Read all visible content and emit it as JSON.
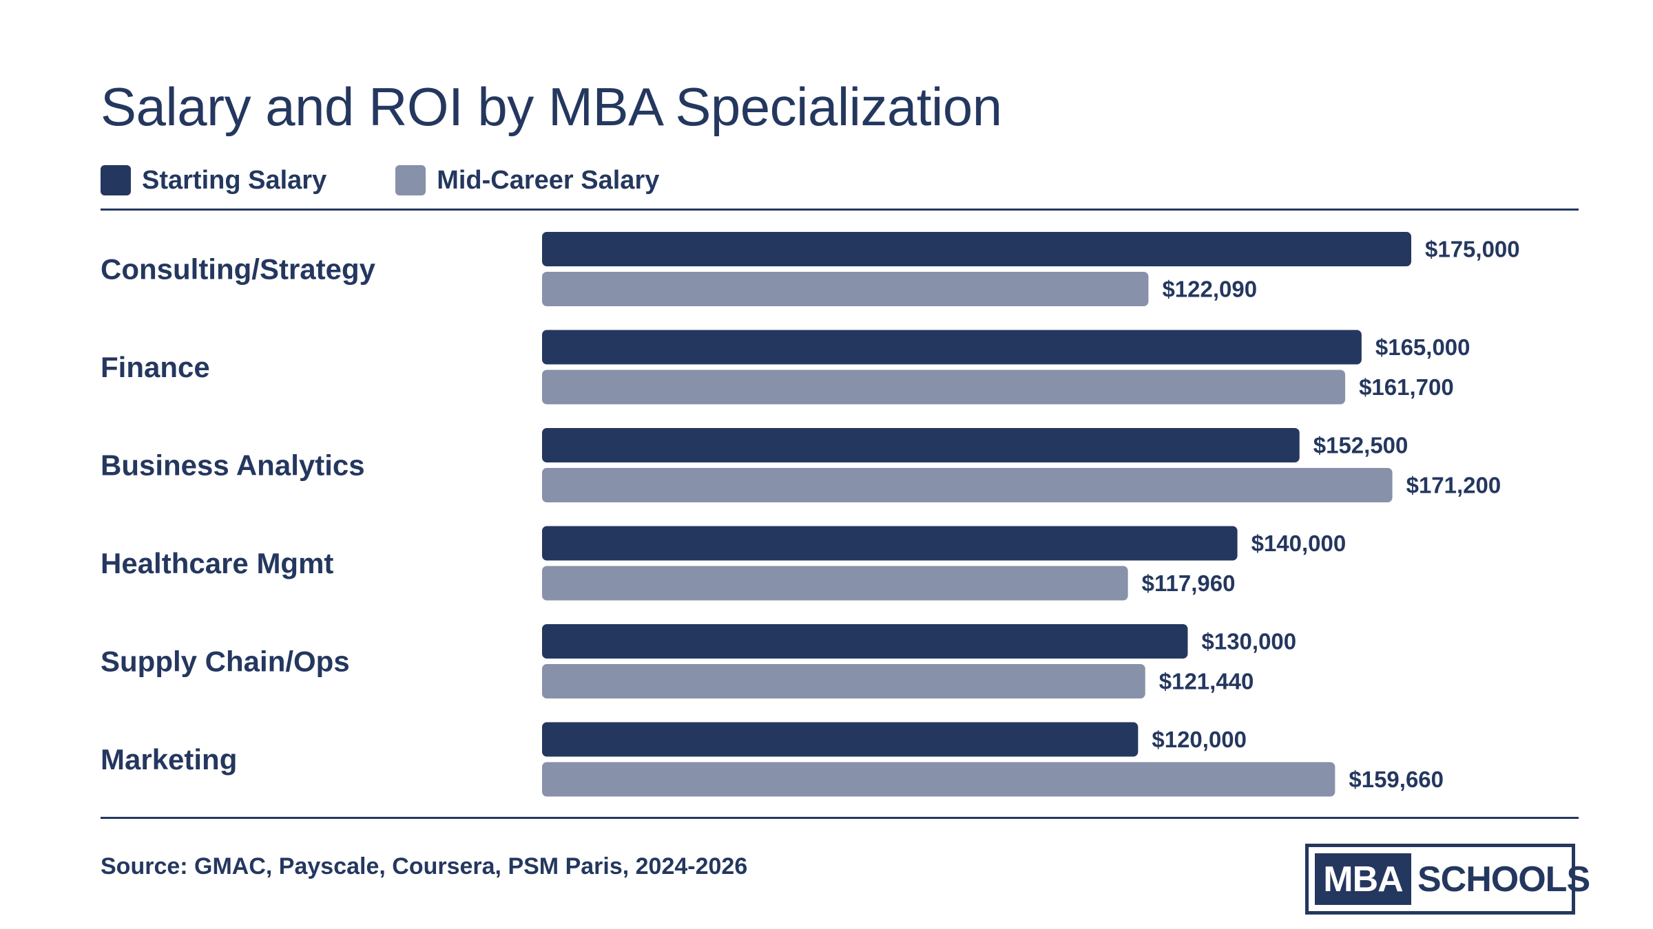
{
  "chart_data": {
    "type": "bar",
    "orientation": "horizontal",
    "title": "Salary and ROI by MBA Specialization",
    "categories": [
      "Consulting/Strategy",
      "Finance",
      "Business Analytics",
      "Healthcare Mgmt",
      "Supply Chain/Ops",
      "Marketing"
    ],
    "series": [
      {
        "name": "Starting Salary",
        "color": "#24375f",
        "values": [
          175000,
          165000,
          152500,
          140000,
          130000,
          120000
        ],
        "labels": [
          "$175,000",
          "$165,000",
          "$152,500",
          "$140,000",
          "$130,000",
          "$120,000"
        ]
      },
      {
        "name": "Mid-Career Salary",
        "color": "#8791a9",
        "values": [
          122090,
          161700,
          171200,
          117960,
          121440,
          159660
        ],
        "labels": [
          "$122,090",
          "$161,700",
          "$171,200",
          "$117,960",
          "$121,440",
          "$159,660"
        ]
      }
    ],
    "xlim": [
      0,
      175000
    ],
    "grid": false,
    "legend_position": "top-left"
  },
  "footer": {
    "source": "Source: GMAC, Payscale, Coursera, PSM Paris, 2024-2026"
  },
  "logo": {
    "part1": "MBA",
    "part2": "SCHOOLS"
  }
}
